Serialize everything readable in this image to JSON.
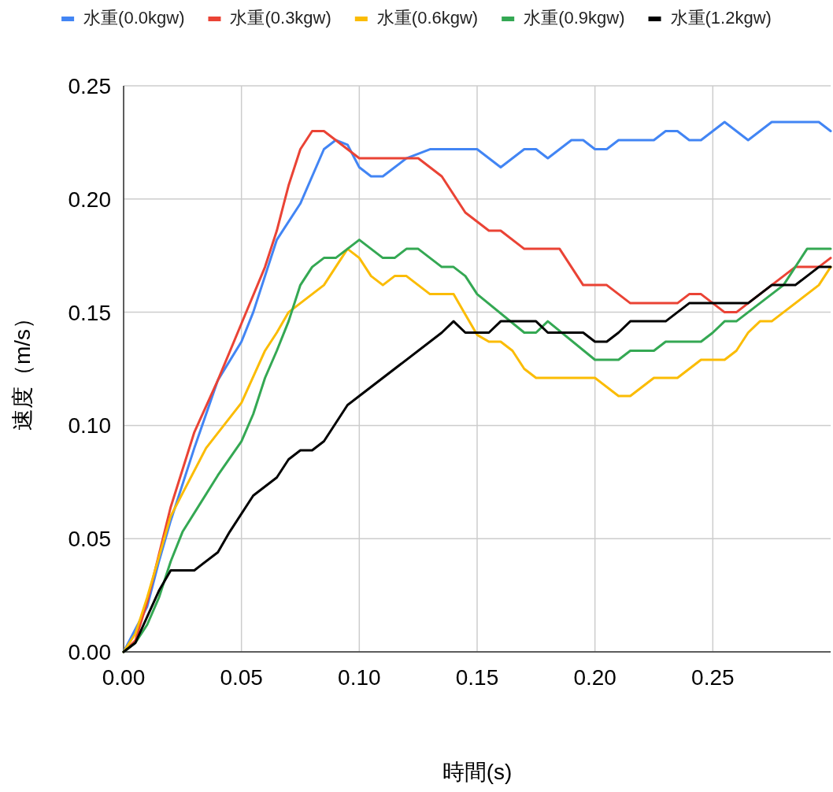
{
  "chart_data": {
    "type": "line",
    "xlabel": "時間(s)",
    "ylabel": "速度（m/s）",
    "legend": "top",
    "grid": true,
    "line_style": "solid",
    "xlim": [
      0,
      0.3
    ],
    "ylim": [
      0,
      0.25
    ],
    "xticks": [
      {
        "value": 0,
        "label": "0.00"
      },
      {
        "value": 0.05,
        "label": "0.05"
      },
      {
        "value": 0.1,
        "label": "0.10"
      },
      {
        "value": 0.15,
        "label": "0.15"
      },
      {
        "value": 0.2,
        "label": "0.20"
      },
      {
        "value": 0.25,
        "label": "0.25"
      }
    ],
    "yticks": [
      {
        "value": 0,
        "label": "0.00"
      },
      {
        "value": 0.05,
        "label": "0.05"
      },
      {
        "value": 0.1,
        "label": "0.10"
      },
      {
        "value": 0.15,
        "label": "0.15"
      },
      {
        "value": 0.2,
        "label": "0.20"
      },
      {
        "value": 0.25,
        "label": "0.25"
      }
    ],
    "series": [
      {
        "name": "水重(0.0kgw)",
        "color": "#4285f4",
        "x": [
          0,
          0.01,
          0.015,
          0.02,
          0.03,
          0.04,
          0.05,
          0.055,
          0.065,
          0.075,
          0.085,
          0.09,
          0.095,
          0.1,
          0.105,
          0.11,
          0.12,
          0.13,
          0.15,
          0.16,
          0.17,
          0.175,
          0.18,
          0.19,
          0.195,
          0.2,
          0.205,
          0.21,
          0.225,
          0.23,
          0.235,
          0.24,
          0.245,
          0.255,
          0.265,
          0.275,
          0.295,
          0.3
        ],
        "values": [
          0,
          0.02,
          0.04,
          0.058,
          0.09,
          0.12,
          0.137,
          0.15,
          0.182,
          0.198,
          0.222,
          0.226,
          0.224,
          0.214,
          0.21,
          0.21,
          0.218,
          0.222,
          0.222,
          0.214,
          0.222,
          0.222,
          0.218,
          0.226,
          0.226,
          0.222,
          0.222,
          0.226,
          0.226,
          0.23,
          0.23,
          0.226,
          0.226,
          0.234,
          0.226,
          0.234,
          0.234,
          0.23
        ]
      },
      {
        "name": "水重(0.3kgw)",
        "color": "#ea4335",
        "x": [
          0,
          0.005,
          0.01,
          0.02,
          0.03,
          0.04,
          0.05,
          0.06,
          0.065,
          0.07,
          0.075,
          0.08,
          0.085,
          0.1,
          0.125,
          0.135,
          0.145,
          0.155,
          0.16,
          0.17,
          0.185,
          0.195,
          0.205,
          0.215,
          0.235,
          0.24,
          0.245,
          0.255,
          0.26,
          0.265,
          0.28,
          0.285,
          0.295,
          0.3
        ],
        "values": [
          0,
          0.005,
          0.022,
          0.064,
          0.097,
          0.12,
          0.145,
          0.17,
          0.186,
          0.206,
          0.222,
          0.23,
          0.23,
          0.218,
          0.218,
          0.21,
          0.194,
          0.186,
          0.186,
          0.178,
          0.178,
          0.162,
          0.162,
          0.154,
          0.154,
          0.158,
          0.158,
          0.15,
          0.15,
          0.154,
          0.166,
          0.17,
          0.17,
          0.174
        ]
      },
      {
        "name": "水重(0.6kgw)",
        "color": "#fbbc04",
        "x": [
          0,
          0.005,
          0.01,
          0.02,
          0.025,
          0.035,
          0.05,
          0.06,
          0.065,
          0.07,
          0.075,
          0.085,
          0.095,
          0.1,
          0.105,
          0.11,
          0.115,
          0.12,
          0.13,
          0.14,
          0.145,
          0.15,
          0.155,
          0.16,
          0.165,
          0.17,
          0.175,
          0.2,
          0.21,
          0.215,
          0.225,
          0.235,
          0.245,
          0.255,
          0.26,
          0.265,
          0.27,
          0.275,
          0.295,
          0.3
        ],
        "values": [
          0,
          0.008,
          0.024,
          0.06,
          0.07,
          0.09,
          0.11,
          0.133,
          0.141,
          0.15,
          0.154,
          0.162,
          0.178,
          0.174,
          0.166,
          0.162,
          0.166,
          0.166,
          0.158,
          0.158,
          0.149,
          0.14,
          0.137,
          0.137,
          0.133,
          0.125,
          0.121,
          0.121,
          0.113,
          0.113,
          0.121,
          0.121,
          0.129,
          0.129,
          0.133,
          0.141,
          0.146,
          0.146,
          0.162,
          0.17
        ]
      },
      {
        "name": "水重(0.9kgw)",
        "color": "#34a853",
        "x": [
          0,
          0.005,
          0.01,
          0.015,
          0.02,
          0.025,
          0.04,
          0.05,
          0.055,
          0.06,
          0.065,
          0.07,
          0.075,
          0.08,
          0.085,
          0.09,
          0.1,
          0.11,
          0.115,
          0.12,
          0.125,
          0.135,
          0.14,
          0.145,
          0.15,
          0.17,
          0.175,
          0.18,
          0.2,
          0.21,
          0.215,
          0.225,
          0.23,
          0.245,
          0.25,
          0.255,
          0.26,
          0.28,
          0.29,
          0.3
        ],
        "values": [
          0,
          0.004,
          0.012,
          0.024,
          0.04,
          0.053,
          0.078,
          0.093,
          0.105,
          0.121,
          0.133,
          0.146,
          0.162,
          0.17,
          0.174,
          0.174,
          0.182,
          0.174,
          0.174,
          0.178,
          0.178,
          0.17,
          0.17,
          0.166,
          0.158,
          0.141,
          0.141,
          0.146,
          0.129,
          0.129,
          0.133,
          0.133,
          0.137,
          0.137,
          0.141,
          0.146,
          0.146,
          0.162,
          0.178,
          0.178
        ]
      },
      {
        "name": "水重(1.2kgw)",
        "color": "#000000",
        "x": [
          0,
          0.005,
          0.015,
          0.02,
          0.03,
          0.04,
          0.045,
          0.055,
          0.065,
          0.07,
          0.075,
          0.08,
          0.085,
          0.095,
          0.1,
          0.135,
          0.14,
          0.145,
          0.155,
          0.16,
          0.175,
          0.18,
          0.195,
          0.2,
          0.205,
          0.21,
          0.215,
          0.23,
          0.24,
          0.265,
          0.275,
          0.285,
          0.295,
          0.3
        ],
        "values": [
          0,
          0.004,
          0.027,
          0.036,
          0.036,
          0.044,
          0.053,
          0.069,
          0.077,
          0.085,
          0.089,
          0.089,
          0.093,
          0.109,
          0.113,
          0.141,
          0.146,
          0.141,
          0.141,
          0.146,
          0.146,
          0.141,
          0.141,
          0.137,
          0.137,
          0.141,
          0.146,
          0.146,
          0.154,
          0.154,
          0.162,
          0.162,
          0.17,
          0.17
        ]
      }
    ]
  }
}
